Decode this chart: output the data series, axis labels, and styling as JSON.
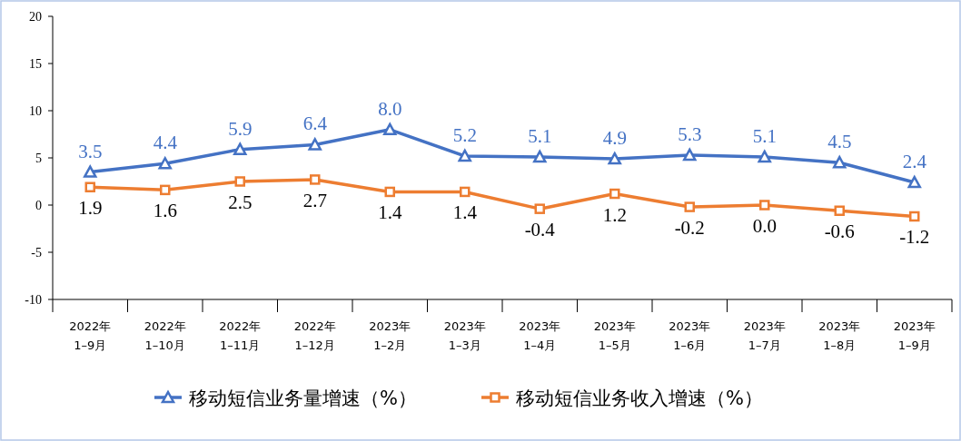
{
  "chart_data": {
    "type": "line",
    "categories": [
      "2022年\n1–9月",
      "2022年\n1–10月",
      "2022年\n1–11月",
      "2022年\n1–12月",
      "2023年\n1–2月",
      "2023年\n1–3月",
      "2023年\n1–4月",
      "2023年\n1–5月",
      "2023年\n1–6月",
      "2023年\n1–7月",
      "2023年\n1–8月",
      "2023年\n1–9月"
    ],
    "series": [
      {
        "name": "移动短信业务量增速（%）",
        "color": "#4472c4",
        "marker": "triangle",
        "values": [
          3.5,
          4.4,
          5.9,
          6.4,
          8.0,
          5.2,
          5.1,
          4.9,
          5.3,
          5.1,
          4.5,
          2.4
        ],
        "value_labels": [
          "3.5",
          "4.4",
          "5.9",
          "6.4",
          "8.0",
          "5.2",
          "5.1",
          "4.9",
          "5.3",
          "5.1",
          "4.5",
          "2.4"
        ]
      },
      {
        "name": "移动短信业务收入增速（%）",
        "color": "#ed7d31",
        "marker": "square",
        "values": [
          1.9,
          1.6,
          2.5,
          2.7,
          1.4,
          1.4,
          -0.4,
          1.2,
          -0.2,
          0.0,
          -0.6,
          -1.2
        ],
        "value_labels": [
          "1.9",
          "1.6",
          "2.5",
          "2.7",
          "1.4",
          "1.4",
          "-0.4",
          "1.2",
          "-0.2",
          "0.0",
          "-0.6",
          "-1.2"
        ]
      }
    ],
    "ylim": [
      -10,
      20
    ],
    "yticks": [
      -10,
      -5,
      0,
      5,
      10,
      15,
      20
    ],
    "grid": false,
    "legend": "bottom",
    "line_style": "solid"
  }
}
